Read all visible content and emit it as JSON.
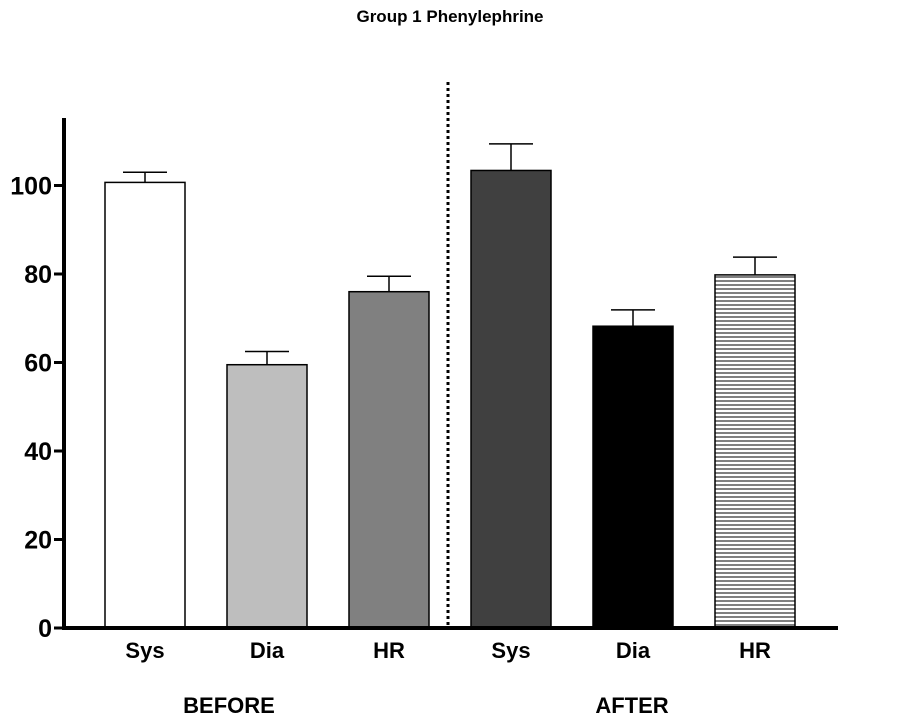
{
  "chart_data": {
    "type": "bar",
    "title": "Group 1 Phenylephrine",
    "xlabel": "",
    "ylabel": "",
    "ylim": [
      0,
      115
    ],
    "yticks": [
      "0",
      "20",
      "40",
      "60",
      "80",
      "100"
    ],
    "grid": false,
    "legend": "none",
    "groups": [
      "BEFORE",
      "AFTER"
    ],
    "categories": [
      "Sys",
      "Dia",
      "HR",
      "Sys",
      "Dia",
      "HR"
    ],
    "values": [
      100.7,
      59.5,
      76.0,
      103.4,
      68.2,
      79.8
    ],
    "error_plus": [
      2.3,
      3.0,
      3.5,
      6.0,
      3.7,
      4.0
    ],
    "bar_fills": [
      "#ffffff",
      "#bebebe",
      "#808080",
      "#404040",
      "#000000",
      "hatch"
    ],
    "separator": "dotted line between BEFORE and AFTER groups"
  }
}
